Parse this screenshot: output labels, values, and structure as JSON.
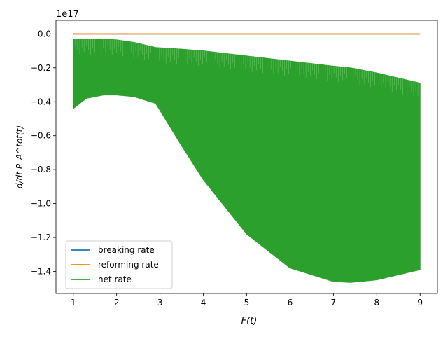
{
  "chart_data": {
    "type": "line",
    "xlabel": "F(t)",
    "ylabel": "d/dt P_A^tot(t)",
    "y_multiplier": "1e17",
    "xlim": [
      0.6,
      9.4
    ],
    "ylim": [
      -1.53,
      0.08
    ],
    "x_ticks": [
      "1",
      "2",
      "3",
      "4",
      "5",
      "6",
      "7",
      "8",
      "9"
    ],
    "y_ticks": [
      "0.0",
      "−0.2",
      "−0.4",
      "−0.6",
      "−0.8",
      "−1.0",
      "−1.2",
      "−1.4"
    ],
    "legend_position": "lower-left",
    "grid": false,
    "series": [
      {
        "name": "breaking rate",
        "color": "#1f77b4",
        "note_values": "overlaps net rate band",
        "x": [
          1,
          9
        ],
        "y": [
          0,
          0
        ]
      },
      {
        "name": "reforming rate",
        "color": "#ff7f0e",
        "x": [
          1,
          9
        ],
        "y": [
          0,
          0
        ]
      },
      {
        "name": "net rate",
        "color": "#2ca02c",
        "style": "rapidly oscillating band",
        "x": [
          1.0,
          1.3,
          1.7,
          2.0,
          2.4,
          2.9,
          3.5,
          4.0,
          5.0,
          6.0,
          7.0,
          7.4,
          8.0,
          9.0
        ],
        "upper": [
          -0.03,
          -0.03,
          -0.03,
          -0.035,
          -0.05,
          -0.08,
          -0.09,
          -0.1,
          -0.13,
          -0.16,
          -0.19,
          -0.2,
          -0.23,
          -0.29
        ],
        "lower": [
          -0.44,
          -0.38,
          -0.36,
          -0.36,
          -0.37,
          -0.41,
          -0.66,
          -0.86,
          -1.18,
          -1.38,
          -1.46,
          -1.465,
          -1.45,
          -1.39
        ]
      }
    ]
  }
}
